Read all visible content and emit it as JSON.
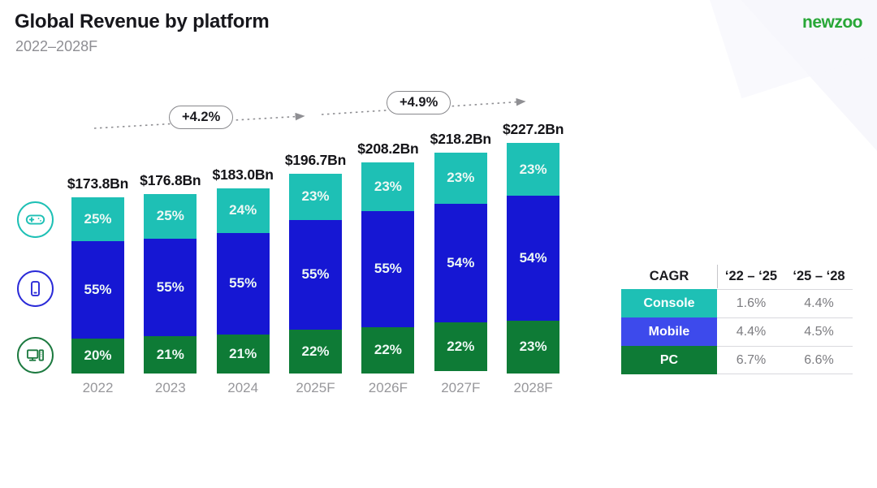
{
  "header": {
    "title": "Global Revenue by platform",
    "subtitle": "2022–2028F",
    "logo": "newzoo"
  },
  "chart_data": {
    "type": "bar",
    "stacked": true,
    "title": "Global Revenue by platform",
    "subtitle": "2022–2028F",
    "categories": [
      "2022",
      "2023",
      "2024",
      "2025F",
      "2026F",
      "2027F",
      "2028F"
    ],
    "totals": [
      "$173.8Bn",
      "$176.8Bn",
      "$183.0Bn",
      "$196.7Bn",
      "$208.2Bn",
      "$218.2Bn",
      "$227.2Bn"
    ],
    "totals_bn": [
      173.8,
      176.8,
      183.0,
      196.7,
      208.2,
      218.2,
      227.2
    ],
    "series": [
      {
        "name": "Console",
        "color": "#1ec0b5",
        "pct": [
          25,
          25,
          24,
          23,
          23,
          23,
          23
        ]
      },
      {
        "name": "Mobile",
        "color": "#1617d3",
        "pct": [
          55,
          55,
          55,
          55,
          55,
          54,
          54
        ]
      },
      {
        "name": "PC",
        "color": "#0e7b36",
        "pct": [
          20,
          21,
          21,
          22,
          22,
          22,
          23
        ]
      }
    ],
    "annotations": [
      {
        "label": "+4.2%"
      },
      {
        "label": "+4.9%"
      }
    ],
    "legend_icons": [
      {
        "name": "console-gamepad-icon",
        "color": "#1ec0b5"
      },
      {
        "name": "mobile-phone-icon",
        "color": "#2b2bd8"
      },
      {
        "name": "pc-desktop-icon",
        "color": "#1d7a40"
      }
    ]
  },
  "table": {
    "header": [
      "CAGR",
      "‘22 – ‘25",
      "‘25 – ‘28"
    ],
    "rows": [
      {
        "label": "Console",
        "color": "#1ec0b5",
        "values": [
          "1.6%",
          "4.4%"
        ]
      },
      {
        "label": "Mobile",
        "color": "#3d4aec",
        "values": [
          "4.4%",
          "4.5%"
        ]
      },
      {
        "label": "PC",
        "color": "#0e7b36",
        "values": [
          "6.7%",
          "6.6%"
        ]
      }
    ]
  },
  "colors": {
    "console": "#1ec0b5",
    "mobile_bar": "#1617d3",
    "mobile_table": "#3d4aec",
    "pc": "#0e7b36",
    "logo_green": "#28a737",
    "arrow_gray": "#8f8f93"
  }
}
